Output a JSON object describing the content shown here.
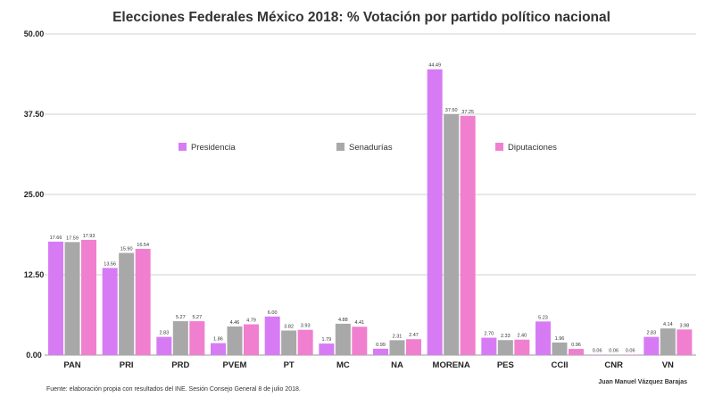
{
  "chart_data": {
    "type": "bar",
    "title": "Elecciones Federales México 2018: % Votación por partido político nacional",
    "categories": [
      "PAN",
      "PRI",
      "PRD",
      "PVEM",
      "PT",
      "MC",
      "NA",
      "MORENA",
      "PES",
      "CCII",
      "CNR",
      "VN"
    ],
    "series": [
      {
        "name": "Presidencia",
        "color": "#d77bf5",
        "values": [
          17.66,
          13.56,
          2.83,
          1.86,
          6.0,
          1.79,
          0.99,
          44.49,
          2.7,
          5.23,
          0.06,
          2.83
        ]
      },
      {
        "name": "Senadurías",
        "color": "#a8a8a8",
        "values": [
          17.59,
          15.9,
          5.27,
          4.46,
          3.82,
          4.88,
          2.31,
          37.5,
          2.33,
          1.96,
          0.06,
          4.14
        ]
      },
      {
        "name": "Diputaciones",
        "color": "#f07fcf",
        "values": [
          17.93,
          16.54,
          5.27,
          4.79,
          3.93,
          4.41,
          2.47,
          37.25,
          2.4,
          0.96,
          0.06,
          3.98
        ]
      }
    ],
    "value_labels": [
      [
        "17.66",
        "13.56",
        "2.83",
        "1.86",
        "6.00",
        "1.79",
        "0.99",
        "44.49",
        "2.70",
        "5.23",
        "0.06",
        "2.83"
      ],
      [
        "17.59",
        "15.90",
        "5.27",
        "4.46",
        "3.82",
        "4.88",
        "2.31",
        "37.50",
        "2.33",
        "1.96",
        "0.06",
        "4.14"
      ],
      [
        "17.93",
        "16.54",
        "5.27",
        "4.79",
        "3.93",
        "4.41",
        "2.47",
        "37.25",
        "2.40",
        "0.96",
        "0.06",
        "3.98"
      ]
    ],
    "yticks": [
      0,
      12.5,
      25,
      37.5,
      50
    ],
    "ytick_labels": [
      "0.00",
      "12.50",
      "25.00",
      "37.50",
      "50.00"
    ],
    "ylim": [
      0,
      50
    ],
    "grid": true,
    "legend_position": "middle"
  },
  "source_note": "Fuente: elaboración propia con resultados del INE. Sesión Consejo General 8 de julio 2018.",
  "author": "Juan Manuel Vázquez Barajas"
}
